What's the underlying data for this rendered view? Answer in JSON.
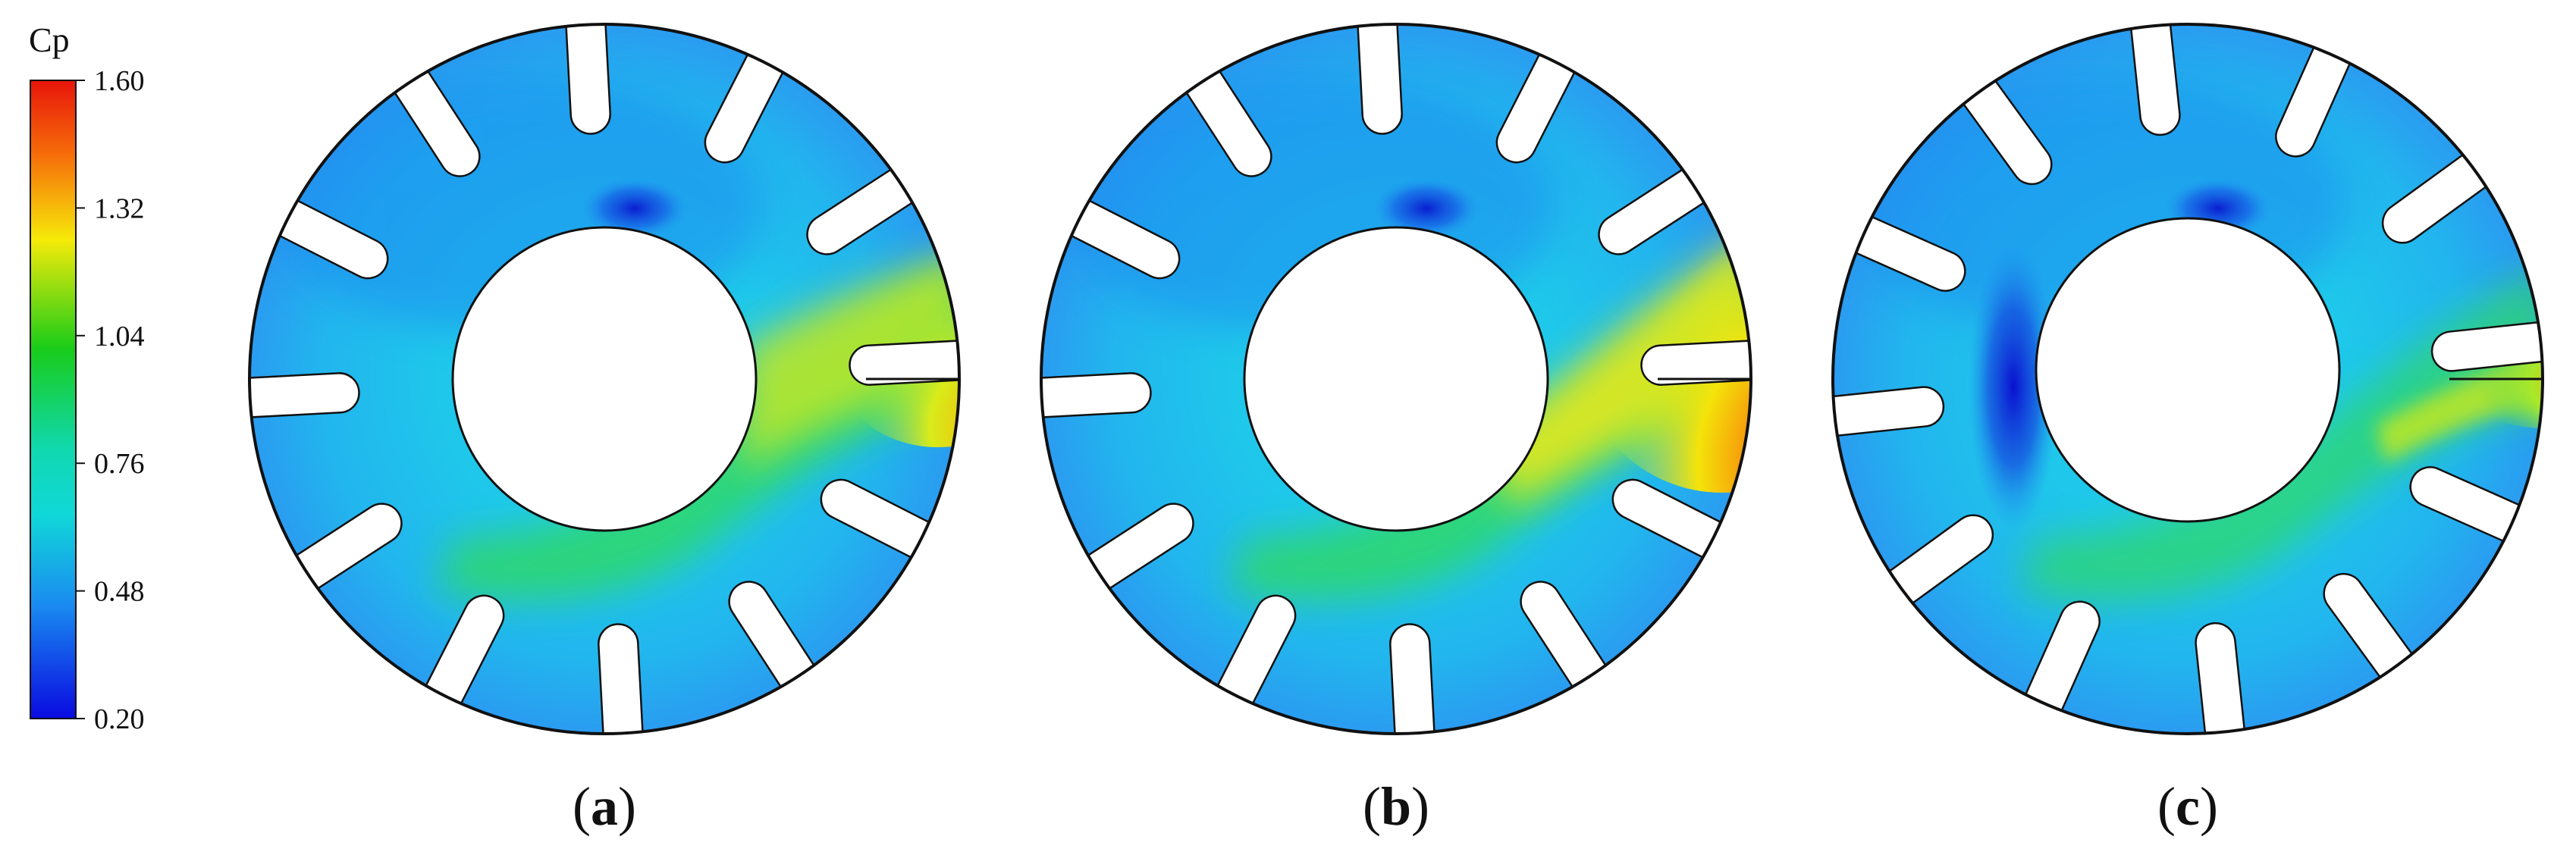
{
  "colorbar": {
    "title": "Cp",
    "ticks": [
      "1.60",
      "1.32",
      "1.04",
      "0.76",
      "0.48",
      "0.20"
    ],
    "colors": {
      "top": "#e8150b",
      "upper": "#f6ea0a",
      "mid": "#19cc19",
      "lower": "#10d8d8",
      "low": "#1a8cf0",
      "bottom": "#0a0ae0"
    }
  },
  "panels": [
    {
      "id": "a",
      "open": "(",
      "letter": "a",
      "close": ")"
    },
    {
      "id": "b",
      "open": "(",
      "letter": "b",
      "close": ")"
    },
    {
      "id": "c",
      "open": "(",
      "letter": "c",
      "close": ")"
    }
  ],
  "field_colors": {
    "base": "#19c3ea",
    "outer_band": "#22a5ef",
    "vortex": "#1030d8",
    "jet": "#2ed86a",
    "jet_core": "#c8e81a",
    "hot": "#ff3b10"
  }
}
